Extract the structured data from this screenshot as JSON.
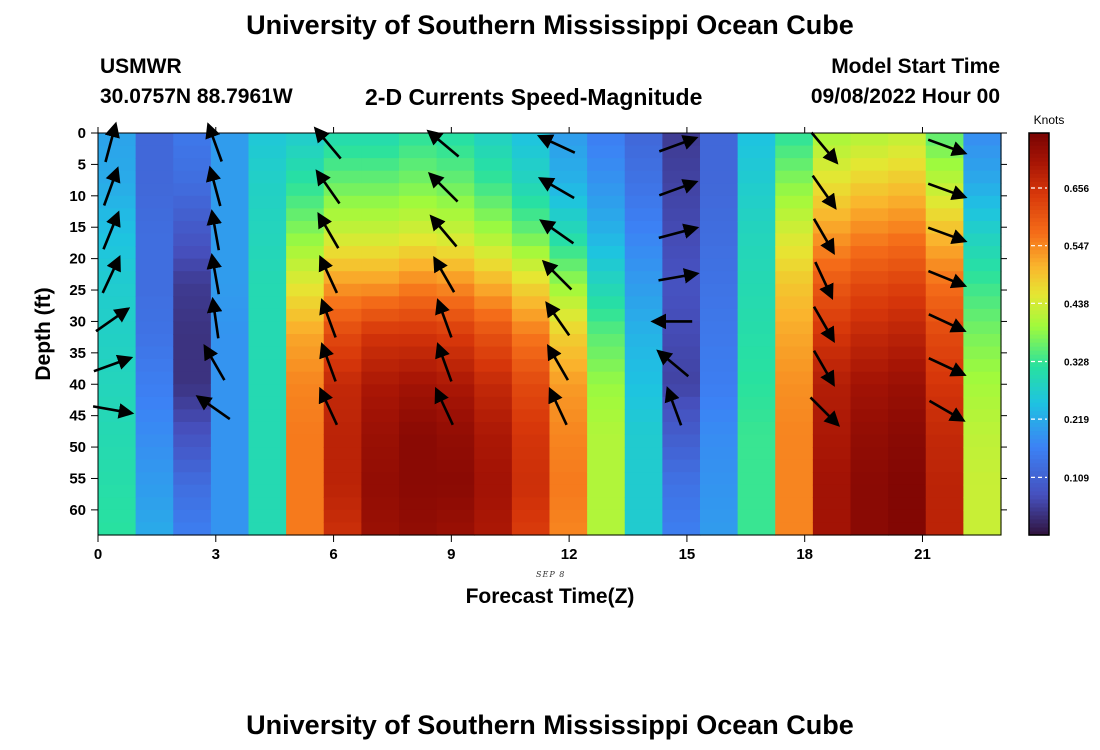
{
  "header": {
    "title": "University of Southern Mississippi Ocean Cube",
    "station_id": "USMWR",
    "station_location": "30.0757N  88.7961W",
    "plot_title": "2-D Currents Speed-Magnitude",
    "model_start_label": "Model Start Time",
    "model_start_value": "09/08/2022 Hour 00",
    "footer_title": "University of Southern Mississippi Ocean Cube"
  },
  "chart_data": {
    "type": "heatmap",
    "title": "2-D Currents Speed-Magnitude",
    "xlabel": "Forecast Time(Z)",
    "ylabel": "Depth (ft)",
    "date_label": "SEP 8",
    "x_ticks": [
      0,
      3,
      6,
      9,
      12,
      15,
      18,
      21
    ],
    "y_ticks": [
      0,
      5,
      10,
      15,
      20,
      25,
      30,
      35,
      40,
      45,
      50,
      55,
      60
    ],
    "xlim": [
      0,
      23
    ],
    "ylim": [
      0,
      64
    ],
    "colorbar": {
      "label": "Knots",
      "ticks": [
        0.109,
        0.219,
        0.328,
        0.438,
        0.547,
        0.656
      ],
      "range": [
        0.0,
        0.76
      ]
    },
    "depth_levels": [
      0,
      8,
      16,
      24,
      32,
      40,
      48,
      56,
      64
    ],
    "hours": [
      0,
      1,
      2,
      3,
      4,
      5,
      6,
      7,
      8,
      9,
      10,
      11,
      12,
      13,
      14,
      15,
      16,
      17,
      18,
      19,
      20,
      21,
      22,
      23
    ],
    "speed_profiles": [
      [
        0.21,
        0.22,
        0.25,
        0.27,
        0.28,
        0.29,
        0.3,
        0.31,
        0.32
      ],
      [
        0.12,
        0.12,
        0.13,
        0.13,
        0.14,
        0.16,
        0.18,
        0.2,
        0.22
      ],
      [
        0.15,
        0.13,
        0.09,
        0.05,
        0.04,
        0.04,
        0.08,
        0.13,
        0.16
      ],
      [
        0.2,
        0.2,
        0.2,
        0.2,
        0.19,
        0.19,
        0.19,
        0.19,
        0.19
      ],
      [
        0.26,
        0.28,
        0.29,
        0.3,
        0.3,
        0.3,
        0.3,
        0.3,
        0.3
      ],
      [
        0.27,
        0.32,
        0.38,
        0.45,
        0.52,
        0.55,
        0.56,
        0.56,
        0.56
      ],
      [
        0.3,
        0.36,
        0.43,
        0.53,
        0.62,
        0.67,
        0.68,
        0.68,
        0.66
      ],
      [
        0.3,
        0.36,
        0.43,
        0.53,
        0.65,
        0.7,
        0.72,
        0.73,
        0.72
      ],
      [
        0.32,
        0.37,
        0.44,
        0.55,
        0.65,
        0.71,
        0.74,
        0.74,
        0.73
      ],
      [
        0.31,
        0.36,
        0.43,
        0.54,
        0.64,
        0.7,
        0.73,
        0.74,
        0.72
      ],
      [
        0.28,
        0.33,
        0.4,
        0.51,
        0.61,
        0.67,
        0.7,
        0.71,
        0.7
      ],
      [
        0.25,
        0.29,
        0.36,
        0.47,
        0.56,
        0.62,
        0.65,
        0.66,
        0.64
      ],
      [
        0.2,
        0.23,
        0.3,
        0.39,
        0.48,
        0.53,
        0.55,
        0.56,
        0.55
      ],
      [
        0.16,
        0.19,
        0.23,
        0.29,
        0.35,
        0.39,
        0.41,
        0.41,
        0.41
      ],
      [
        0.12,
        0.14,
        0.17,
        0.2,
        0.23,
        0.25,
        0.27,
        0.27,
        0.27
      ],
      [
        0.05,
        0.06,
        0.07,
        0.08,
        0.07,
        0.06,
        0.1,
        0.14,
        0.16
      ],
      [
        0.12,
        0.12,
        0.13,
        0.14,
        0.15,
        0.16,
        0.18,
        0.19,
        0.2
      ],
      [
        0.25,
        0.27,
        0.29,
        0.3,
        0.31,
        0.32,
        0.33,
        0.33,
        0.33
      ],
      [
        0.32,
        0.38,
        0.44,
        0.49,
        0.52,
        0.54,
        0.55,
        0.55,
        0.55
      ],
      [
        0.4,
        0.46,
        0.53,
        0.6,
        0.65,
        0.69,
        0.7,
        0.71,
        0.71
      ],
      [
        0.41,
        0.48,
        0.55,
        0.62,
        0.67,
        0.71,
        0.73,
        0.74,
        0.74
      ],
      [
        0.42,
        0.49,
        0.56,
        0.63,
        0.68,
        0.72,
        0.74,
        0.75,
        0.75
      ],
      [
        0.35,
        0.42,
        0.5,
        0.57,
        0.62,
        0.65,
        0.67,
        0.68,
        0.68
      ],
      [
        0.18,
        0.22,
        0.28,
        0.33,
        0.37,
        0.4,
        0.42,
        0.43,
        0.43
      ]
    ],
    "vector_depths": [
      2,
      9,
      16,
      23,
      30,
      37,
      44
    ],
    "vector_times": [
      0.15,
      2.85,
      5.75,
      8.7,
      11.6,
      14.55,
      18.3,
      21.4
    ],
    "vector_angles_deg": [
      [
        75,
        70,
        68,
        65,
        35,
        20,
        -10
      ],
      [
        110,
        105,
        100,
        100,
        98,
        120,
        145
      ],
      [
        130,
        125,
        120,
        115,
        110,
        110,
        115
      ],
      [
        140,
        135,
        130,
        120,
        110,
        110,
        115
      ],
      [
        155,
        150,
        145,
        135,
        125,
        120,
        115
      ],
      [
        20,
        20,
        15,
        10,
        180,
        140,
        110
      ],
      [
        -50,
        -55,
        -60,
        -65,
        -60,
        -60,
        -45
      ],
      [
        -20,
        -20,
        -20,
        -22,
        -25,
        -25,
        -30
      ]
    ]
  }
}
